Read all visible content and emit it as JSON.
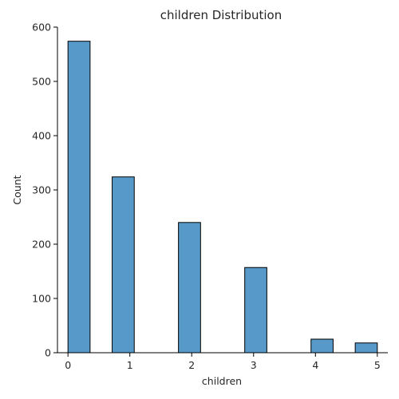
{
  "chart_data": {
    "type": "bar",
    "title": "children Distribution",
    "xlabel": "children",
    "ylabel": "Count",
    "categories": [
      "0",
      "1",
      "2",
      "3",
      "4",
      "5"
    ],
    "values": [
      574,
      324,
      240,
      157,
      25,
      18
    ],
    "xlim": [
      -0.17,
      5.17
    ],
    "ylim": [
      0,
      600
    ],
    "xticks": [
      0,
      1,
      2,
      3,
      4,
      5
    ],
    "yticks": [
      0,
      100,
      200,
      300,
      400,
      500,
      600
    ],
    "bins": [
      {
        "start": 0.0,
        "end": 0.3571
      },
      {
        "start": 0.7143,
        "end": 1.0714
      },
      {
        "start": 1.7857,
        "end": 2.1429
      },
      {
        "start": 2.8571,
        "end": 3.2143
      },
      {
        "start": 3.9286,
        "end": 4.2857
      },
      {
        "start": 4.6429,
        "end": 5.0
      }
    ],
    "grid": false,
    "bar_color": "#5799c8",
    "edge_color": "#000000"
  }
}
